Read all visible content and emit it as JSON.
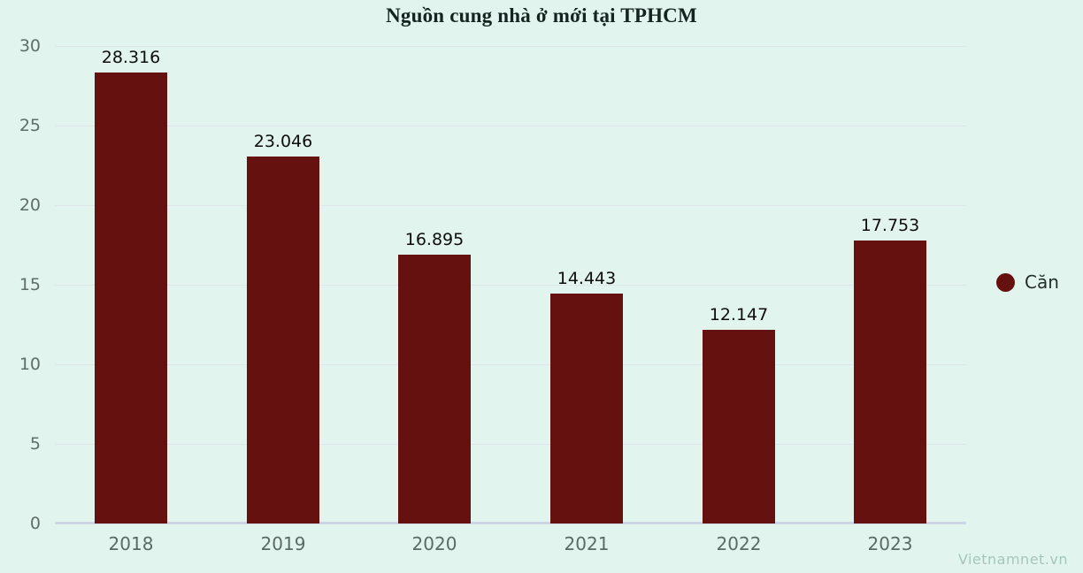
{
  "title": "Nguồn cung nhà ở mới tại TPHCM",
  "legend": {
    "label": "Căn",
    "marker_color": "#651110"
  },
  "watermark": "Vietnamnet.vn",
  "colors": {
    "background": "#e2f4ee",
    "bar": "#651110",
    "axis_line": "#ccd5e3",
    "grid_line": "#dde6e8",
    "y_tick_text": "#5f6e6a",
    "x_tick_text": "#5a6a66",
    "data_label_text": "#0e0e0e",
    "title_text": "#142420",
    "legend_text": "#232e2b",
    "watermark_text": "#a5c6bd"
  },
  "chart_data": {
    "type": "bar",
    "title": "Nguồn cung nhà ở mới tại TPHCM",
    "categories": [
      "2018",
      "2019",
      "2020",
      "2021",
      "2022",
      "2023"
    ],
    "series": [
      {
        "name": "Căn",
        "values": [
          28.316,
          23.046,
          16.895,
          14.443,
          12.147,
          17.753
        ]
      }
    ],
    "value_labels": [
      "28.316",
      "23.046",
      "16.895",
      "14.443",
      "12.147",
      "17.753"
    ],
    "xlabel": "",
    "ylabel": "",
    "ylim": [
      0,
      30
    ],
    "yticks": [
      0,
      5,
      10,
      15,
      20,
      25,
      30
    ],
    "grid": true,
    "legend_position": "right"
  }
}
